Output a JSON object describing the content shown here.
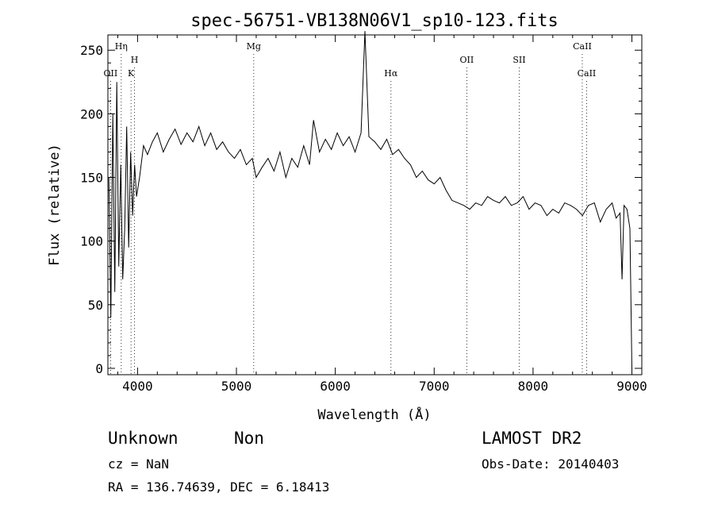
{
  "chart_data": {
    "type": "line",
    "title": "spec-56751-VB138N06V1_sp10-123.fits",
    "xlabel": "Wavelength (Å)",
    "ylabel": "Flux (relative)",
    "xlim": [
      3700,
      9100
    ],
    "ylim": [
      -5,
      262
    ],
    "xticks": [
      4000,
      5000,
      6000,
      7000,
      8000,
      9000
    ],
    "yticks": [
      0,
      50,
      100,
      150,
      200,
      250
    ],
    "grid": false,
    "series": [
      {
        "x": [
          3710,
          3730,
          3750,
          3770,
          3790,
          3810,
          3830,
          3850,
          3870,
          3890,
          3910,
          3930,
          3950,
          3970,
          3990,
          4020,
          4060,
          4100,
          4150,
          4200,
          4260,
          4320,
          4380,
          4440,
          4500,
          4560,
          4620,
          4680,
          4740,
          4800,
          4860,
          4920,
          4980,
          5040,
          5100,
          5160,
          5200,
          5260,
          5320,
          5380,
          5440,
          5500,
          5560,
          5620,
          5680,
          5740,
          5780,
          5840,
          5900,
          5960,
          6020,
          6080,
          6140,
          6200,
          6260,
          6300,
          6340,
          6400,
          6460,
          6520,
          6580,
          6640,
          6700,
          6760,
          6820,
          6880,
          6940,
          7000,
          7060,
          7120,
          7180,
          7240,
          7300,
          7360,
          7420,
          7480,
          7540,
          7600,
          7660,
          7720,
          7780,
          7840,
          7900,
          7960,
          8020,
          8080,
          8140,
          8200,
          8260,
          8320,
          8380,
          8440,
          8500,
          8560,
          8620,
          8680,
          8740,
          8800,
          8840,
          8880,
          8900,
          8920,
          8950,
          8980,
          9000
        ],
        "values": [
          150,
          40,
          200,
          60,
          225,
          80,
          160,
          70,
          110,
          190,
          95,
          170,
          120,
          160,
          135,
          150,
          175,
          168,
          178,
          185,
          170,
          180,
          188,
          176,
          185,
          178,
          190,
          175,
          185,
          172,
          178,
          170,
          165,
          172,
          160,
          165,
          150,
          158,
          165,
          155,
          170,
          150,
          165,
          158,
          175,
          160,
          195,
          170,
          180,
          172,
          185,
          175,
          182,
          170,
          185,
          265,
          182,
          178,
          172,
          180,
          168,
          172,
          165,
          160,
          150,
          155,
          148,
          145,
          150,
          140,
          132,
          130,
          128,
          125,
          130,
          128,
          135,
          132,
          130,
          135,
          128,
          130,
          135,
          125,
          130,
          128,
          120,
          125,
          122,
          130,
          128,
          125,
          120,
          128,
          130,
          115,
          125,
          130,
          118,
          122,
          70,
          128,
          125,
          110,
          0
        ]
      }
    ],
    "annotations": [
      {
        "label": "OII",
        "x": 3727,
        "row": 3
      },
      {
        "label": "Hη",
        "x": 3835,
        "row": 1
      },
      {
        "label": "H",
        "x": 3969,
        "row": 2
      },
      {
        "label": "K",
        "x": 3934,
        "row": 3
      },
      {
        "label": "Mg",
        "x": 5175,
        "row": 1
      },
      {
        "label": "Hα",
        "x": 6563,
        "row": 3
      },
      {
        "label": "OII",
        "x": 7330,
        "row": 2
      },
      {
        "label": "SII",
        "x": 7860,
        "row": 2
      },
      {
        "label": "CaII",
        "x": 8498,
        "row": 1
      },
      {
        "label": "CaII",
        "x": 8542,
        "row": 3
      }
    ]
  },
  "info": {
    "class": "Unknown",
    "subclass": "Non",
    "survey": "LAMOST DR2",
    "cz": "cz = NaN",
    "obs_date": "Obs-Date: 20140403",
    "coords": "RA = 136.74639, DEC =   6.18413"
  }
}
